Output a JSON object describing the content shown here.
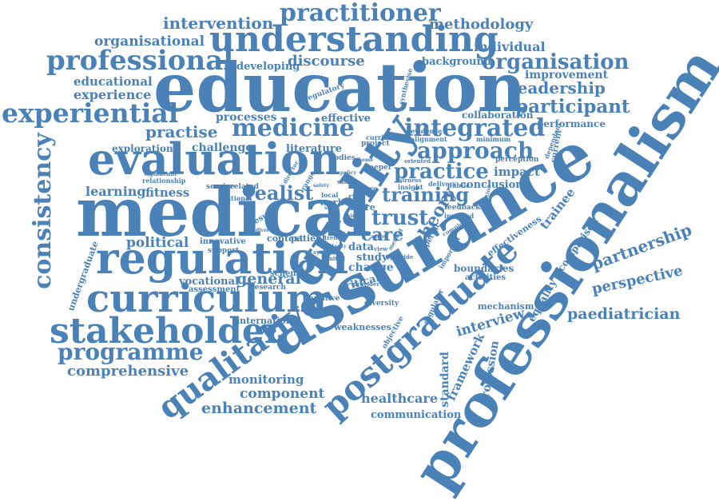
{
  "style": {
    "word_color": "#4a81b6",
    "background": "#ffffff"
  },
  "words": {
    "w1": "education",
    "w2": "medical",
    "w3": "assurance",
    "w4": "professionalism",
    "w5": "quality",
    "w6": "evaluation",
    "w7": "regulation",
    "w8": "curriculum",
    "w9": "stakeholder",
    "w10": "understanding",
    "w11": "professional",
    "w12": "practitioner",
    "w13": "experiential",
    "w14": "medicine",
    "w15": "postgraduate",
    "w16": "qualitative",
    "w17": "consistency",
    "w18": "programme",
    "w19": "integrated",
    "w20": "approach",
    "w21": "practice",
    "w22": "training",
    "w23": "organisation",
    "w24": "participant",
    "w25": "leadership",
    "w26": "intervention",
    "w27": "methodology",
    "w28": "organisational",
    "w29": "individual",
    "w30": "discourse",
    "w31": "developing",
    "w32": "background",
    "w33": "improvement",
    "w34": "educational",
    "w35": "experience",
    "w36": "practise",
    "w37": "processes",
    "w38": "effective",
    "w39": "collaboration",
    "w40": "performance",
    "w41": "exploration",
    "w42": "challenge",
    "w43": "literature",
    "w44": "learning",
    "w45": "fitness",
    "w46": "realist",
    "w47": "trust",
    "w48": "care",
    "w49": "theory",
    "w50": "impact",
    "w51": "conclusion",
    "w52": "trainee",
    "w53": "partnership",
    "w54": "perspective",
    "w55": "paediatrician",
    "w56": "political",
    "w57": "general",
    "w58": "comprehensive",
    "w59": "monitoring",
    "w60": "component",
    "w61": "enhancement",
    "w62": "healthcare",
    "w63": "communication",
    "w64": "interview",
    "w65": "framework",
    "w66": "standard",
    "w67": "profession",
    "w68": "equality",
    "w69": "comparison",
    "w70": "mechanism",
    "w71": "boundaries",
    "w72": "activities",
    "w73": "effectiveness",
    "w74": "vocational",
    "w75": "assessment",
    "w76": "innovative",
    "w77": "support",
    "w78": "undergraduate",
    "w79": "international",
    "w80": "weaknesses",
    "w81": "critical",
    "w82": "scheme",
    "w83": "research",
    "w84": "positive",
    "w85": "diversity",
    "w86": "context",
    "w87": "patient",
    "w88": "study",
    "w89": "change",
    "w90": "data",
    "w91": "work",
    "w92": "more",
    "w93": "risk",
    "w94": "result",
    "w95": "service",
    "w96": "related",
    "w97": "national",
    "w98": "relationship",
    "w99": "significant",
    "w100": "feedback",
    "w101": "involved",
    "w102": "public",
    "w103": "delivery",
    "w104": "perception",
    "w105": "minimum",
    "w106": "evidence",
    "w107": "alignment",
    "w108": "oriented",
    "w109": "deeper",
    "w110": "project",
    "w111": "curricula",
    "w112": "bodies",
    "w113": "regulatory",
    "w114": "synthesise",
    "w115": "dependent",
    "w116": "current",
    "w117": "regulator",
    "w118": "objective",
    "w119": "insight",
    "w120": "fairness",
    "w121": "specific",
    "w122": "important",
    "w123": "question",
    "w124": "future",
    "w125": "sample",
    "w126": "local",
    "w127": "role",
    "w128": "trend",
    "w129": "limited",
    "w130": "provider",
    "w131": "system",
    "w132": "method",
    "w133": "range",
    "w134": "view",
    "w135": "provide",
    "w136": "adopt",
    "w137": "clarity",
    "w138": "complex",
    "w139": "site",
    "w140": "mind",
    "w141": "safety",
    "w142": "director",
    "w143": "diverse",
    "w144": "policy",
    "w145": "theme"
  }
}
